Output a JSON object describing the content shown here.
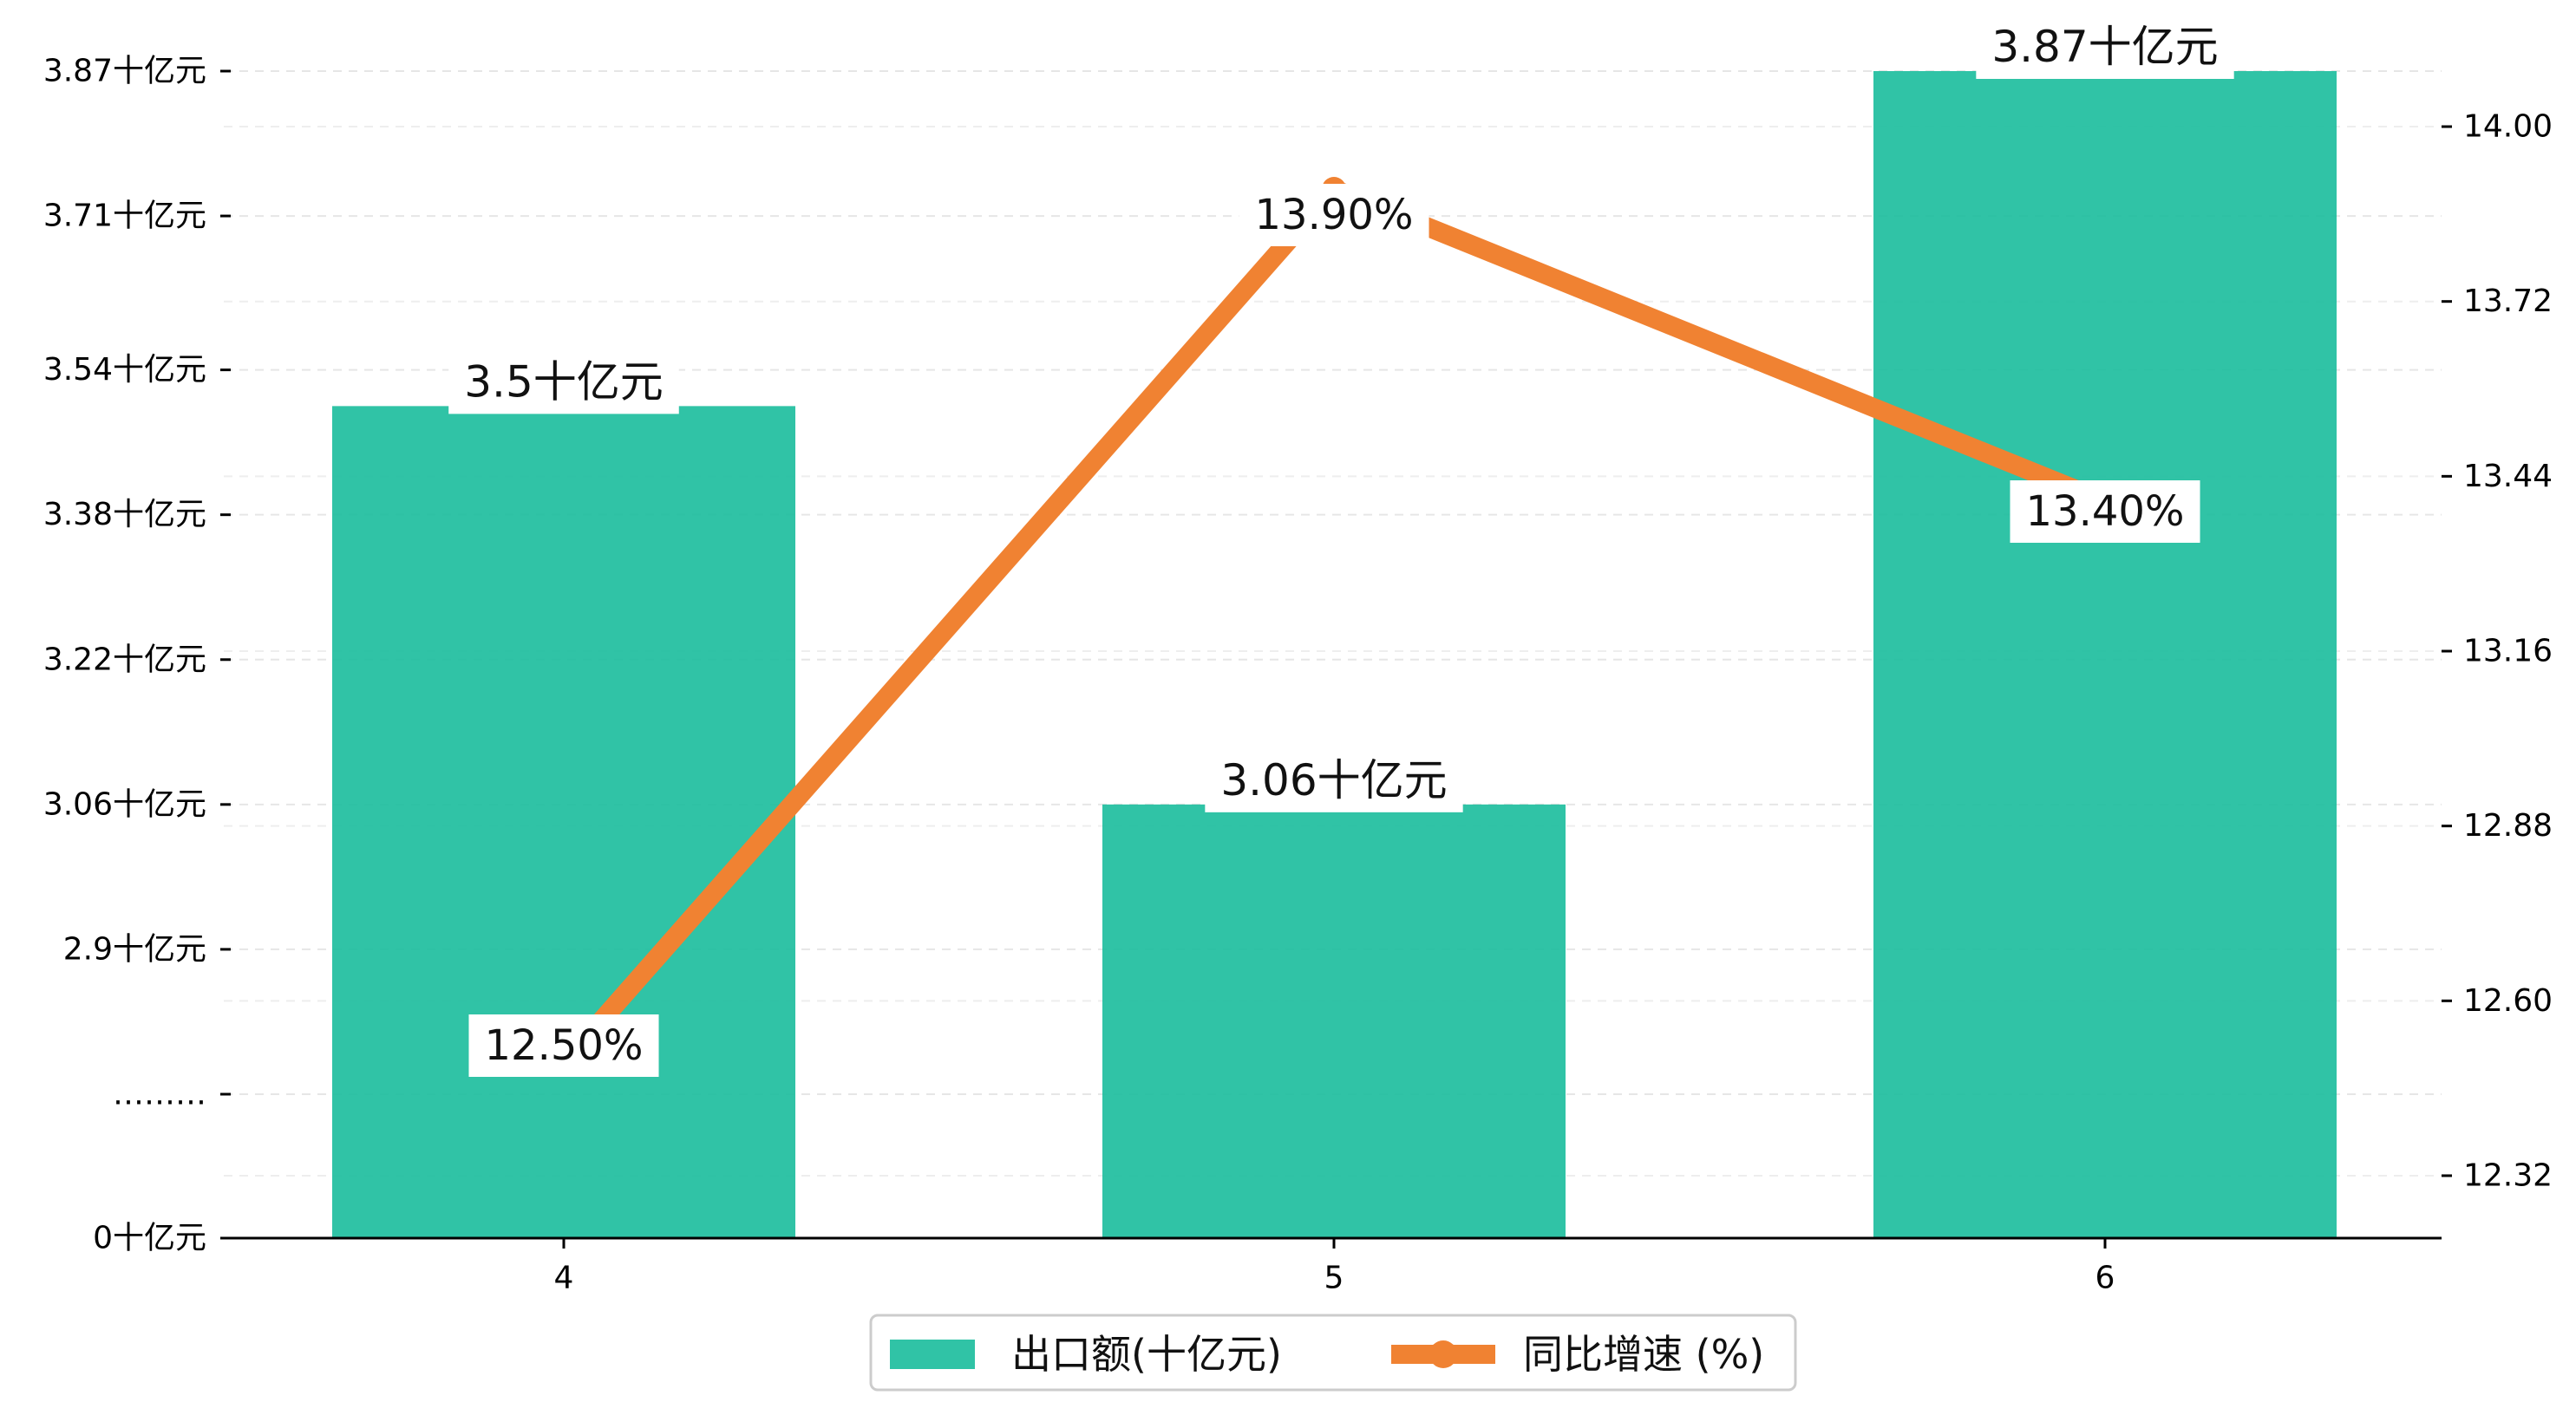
{
  "chart_data": {
    "type": "bar",
    "categories": [
      "4",
      "5",
      "6"
    ],
    "series": [
      {
        "name": "出口额(十亿元)",
        "kind": "bar",
        "axis": "left",
        "color": "#1ABC9C",
        "values": [
          3.5,
          3.06,
          3.87
        ],
        "labels": [
          "3.5十亿元",
          "3.06十亿元",
          "3.87十亿元"
        ]
      },
      {
        "name": "同比增速 (%)",
        "kind": "line",
        "axis": "right",
        "color": "#F08232",
        "values": [
          12.5,
          13.9,
          13.4
        ],
        "labels": [
          "12.50%",
          "13.90%",
          "13.40%"
        ]
      }
    ],
    "y_left": {
      "axis_break": true,
      "ticks": [
        {
          "value": 0,
          "label": "0十亿元"
        },
        {
          "value": 2.74,
          "label": "………"
        },
        {
          "value": 2.9,
          "label": "2.9十亿元"
        },
        {
          "value": 3.06,
          "label": "3.06十亿元"
        },
        {
          "value": 3.22,
          "label": "3.22十亿元"
        },
        {
          "value": 3.38,
          "label": "3.38十亿元"
        },
        {
          "value": 3.54,
          "label": "3.54十亿元"
        },
        {
          "value": 3.71,
          "label": "3.71十亿元"
        },
        {
          "value": 3.87,
          "label": "3.87十亿元"
        }
      ]
    },
    "y_right": {
      "ylim": [
        12.22,
        14.15
      ],
      "ticks": [
        "12.32",
        "12.60",
        "12.88",
        "13.16",
        "13.44",
        "13.72",
        "14.00"
      ]
    },
    "grid": true,
    "legend": "bottom-center"
  }
}
